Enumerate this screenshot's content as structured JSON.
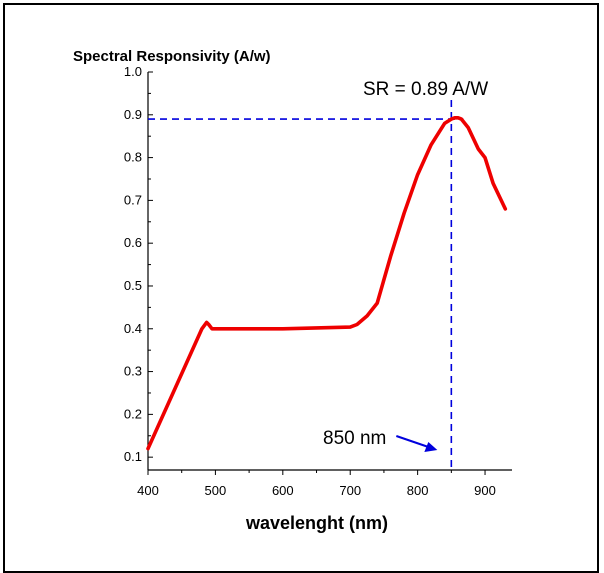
{
  "chart_data": {
    "type": "line",
    "title": "",
    "ylabel": "Spectral Responsivity (A/w)",
    "xlabel": "wavelenght (nm)",
    "xlim": [
      400,
      940
    ],
    "ylim": [
      0.07,
      1.0
    ],
    "x_ticks": [
      400,
      500,
      600,
      700,
      800,
      900
    ],
    "y_ticks": [
      0.1,
      0.2,
      0.3,
      0.4,
      0.5,
      0.6,
      0.7,
      0.8,
      0.9,
      1.0
    ],
    "y_tick_labels": [
      "0.1",
      "0.2",
      "0.3",
      "0.4",
      "0.5",
      "0.6",
      "0.7",
      "0.8",
      "0.9",
      "1.0"
    ],
    "grid": false,
    "line_color": "#ee0000",
    "reference_color": "#0000dd",
    "series": [
      {
        "x": [
          400,
          480,
          487,
          490,
          495,
          600,
          700,
          710,
          725,
          740,
          760,
          780,
          800,
          820,
          840,
          850,
          855,
          860,
          865,
          875,
          890,
          900,
          912,
          930
        ],
        "y": [
          0.12,
          0.4,
          0.415,
          0.41,
          0.4,
          0.4,
          0.404,
          0.41,
          0.43,
          0.46,
          0.57,
          0.67,
          0.76,
          0.83,
          0.88,
          0.89,
          0.893,
          0.893,
          0.89,
          0.87,
          0.82,
          0.8,
          0.74,
          0.68
        ]
      }
    ],
    "reference_lines": {
      "vertical_x": 850,
      "horizontal_y": 0.89
    },
    "annotations": {
      "sr_text": "SR  =  0.89 A/W",
      "wavelength_text": "850 nm"
    }
  }
}
